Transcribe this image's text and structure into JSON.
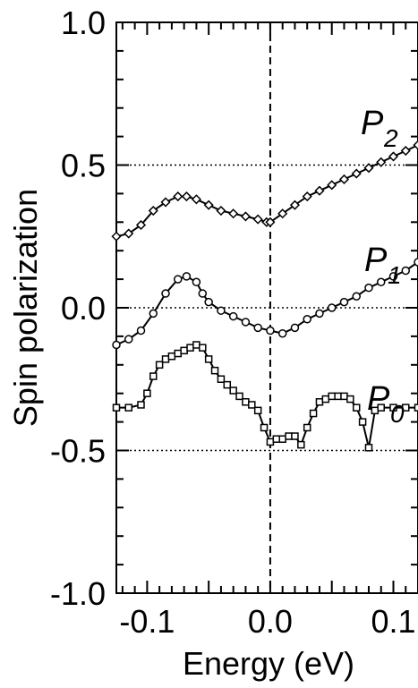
{
  "chart_data": {
    "type": "line",
    "title": "",
    "xlabel": "Energy (eV)",
    "ylabel": "Spin polarization",
    "xlim": [
      -0.125,
      0.12
    ],
    "ylim": [
      -1.0,
      1.0
    ],
    "x_ticks": [
      -0.1,
      0.0,
      0.1
    ],
    "x_tick_labels": [
      "-0.1",
      "0.0",
      "0.1"
    ],
    "y_ticks": [
      1.0,
      0.5,
      0.0,
      -0.5,
      -1.0
    ],
    "y_tick_labels": [
      "1.0",
      "0.5",
      "0.0",
      "-0.5",
      "-1.0"
    ],
    "grid": "dotted horizontal lines at 0.5, 0.0, -0.5",
    "reference_line": {
      "x": 0.0,
      "style": "dashed vertical"
    },
    "series_labels": [
      {
        "main": "P",
        "sub": "2",
        "series": 0
      },
      {
        "main": "P",
        "sub": "1",
        "series": 1
      },
      {
        "main": "P",
        "sub": "0",
        "series": 2
      }
    ],
    "series": [
      {
        "marker": "diamond",
        "x": [
          -0.125,
          -0.115,
          -0.105,
          -0.095,
          -0.085,
          -0.075,
          -0.068,
          -0.06,
          -0.05,
          -0.04,
          -0.03,
          -0.02,
          -0.01,
          -0.003,
          0.0,
          0.01,
          0.02,
          0.03,
          0.04,
          0.05,
          0.06,
          0.07,
          0.08,
          0.09,
          0.1,
          0.11,
          0.12
        ],
        "y": [
          0.25,
          0.26,
          0.29,
          0.34,
          0.37,
          0.39,
          0.39,
          0.38,
          0.36,
          0.34,
          0.33,
          0.32,
          0.31,
          0.3,
          0.3,
          0.33,
          0.36,
          0.39,
          0.41,
          0.43,
          0.45,
          0.47,
          0.49,
          0.51,
          0.53,
          0.55,
          0.57
        ]
      },
      {
        "marker": "circle",
        "x": [
          -0.125,
          -0.115,
          -0.105,
          -0.095,
          -0.085,
          -0.075,
          -0.068,
          -0.06,
          -0.055,
          -0.05,
          -0.04,
          -0.03,
          -0.02,
          -0.01,
          0.0,
          0.01,
          0.02,
          0.03,
          0.04,
          0.05,
          0.06,
          0.07,
          0.08,
          0.09,
          0.1,
          0.11,
          0.12
        ],
        "y": [
          -0.13,
          -0.11,
          -0.08,
          -0.02,
          0.05,
          0.1,
          0.11,
          0.09,
          0.05,
          0.02,
          -0.01,
          -0.03,
          -0.05,
          -0.07,
          -0.08,
          -0.09,
          -0.07,
          -0.04,
          -0.02,
          0.0,
          0.02,
          0.04,
          0.07,
          0.09,
          0.11,
          0.13,
          0.16
        ]
      },
      {
        "marker": "square",
        "x": [
          -0.125,
          -0.115,
          -0.105,
          -0.1,
          -0.095,
          -0.09,
          -0.085,
          -0.08,
          -0.075,
          -0.07,
          -0.065,
          -0.06,
          -0.055,
          -0.05,
          -0.045,
          -0.04,
          -0.035,
          -0.03,
          -0.025,
          -0.02,
          -0.015,
          -0.01,
          -0.005,
          0.0,
          0.005,
          0.01,
          0.015,
          0.02,
          0.025,
          0.03,
          0.035,
          0.04,
          0.045,
          0.05,
          0.055,
          0.06,
          0.065,
          0.07,
          0.075,
          0.08,
          0.085,
          0.09,
          0.1,
          0.11,
          0.12
        ],
        "y": [
          -0.35,
          -0.35,
          -0.34,
          -0.3,
          -0.24,
          -0.2,
          -0.18,
          -0.17,
          -0.16,
          -0.15,
          -0.14,
          -0.13,
          -0.14,
          -0.18,
          -0.22,
          -0.25,
          -0.27,
          -0.29,
          -0.31,
          -0.33,
          -0.34,
          -0.36,
          -0.42,
          -0.47,
          -0.46,
          -0.46,
          -0.45,
          -0.45,
          -0.48,
          -0.42,
          -0.37,
          -0.33,
          -0.32,
          -0.31,
          -0.31,
          -0.31,
          -0.32,
          -0.35,
          -0.4,
          -0.49,
          -0.36,
          -0.35,
          -0.35,
          -0.35,
          -0.35
        ]
      }
    ]
  }
}
